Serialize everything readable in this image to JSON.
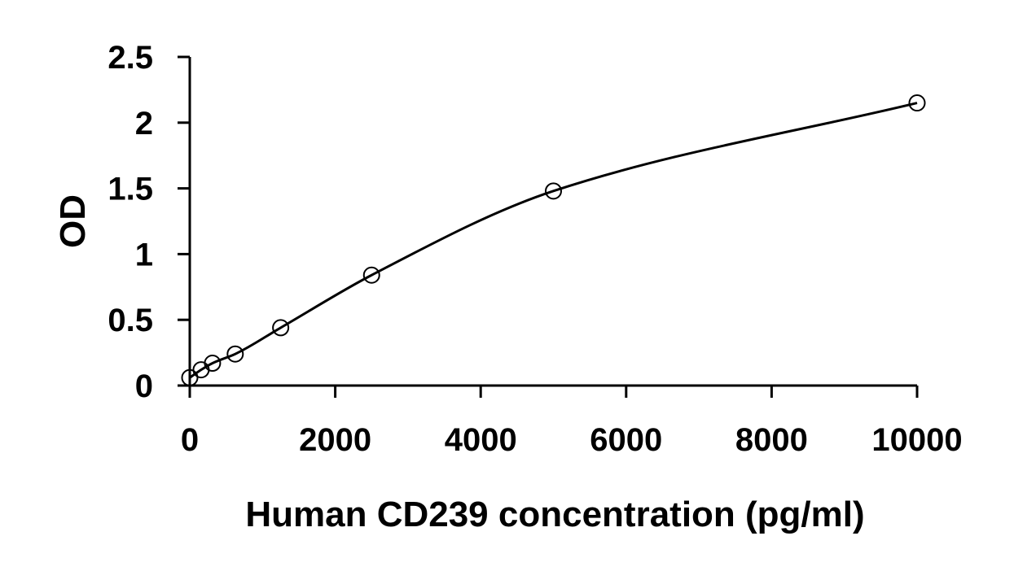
{
  "chart_data": {
    "type": "scatter",
    "xlabel": "Human CD239 concentration (pg/ml)",
    "ylabel": "OD",
    "xlim": [
      0,
      10000
    ],
    "ylim": [
      0,
      2.5
    ],
    "x_ticks": [
      "0",
      "2000",
      "4000",
      "6000",
      "8000",
      "10000"
    ],
    "y_ticks": [
      "0",
      "0.5",
      "1",
      "1.5",
      "2",
      "2.5"
    ],
    "grid": false,
    "legend": "none",
    "series": [
      {
        "x": [
          0,
          156.25,
          312.5,
          625,
          1250,
          2500,
          5000,
          10000
        ],
        "y": [
          0.06,
          0.12,
          0.17,
          0.24,
          0.44,
          0.84,
          1.48,
          2.15
        ],
        "marker": "open-circle",
        "trendline": "smooth-fit"
      }
    ],
    "colors": {
      "axis": "#000000",
      "marker": "#000000",
      "line": "#000000"
    }
  }
}
